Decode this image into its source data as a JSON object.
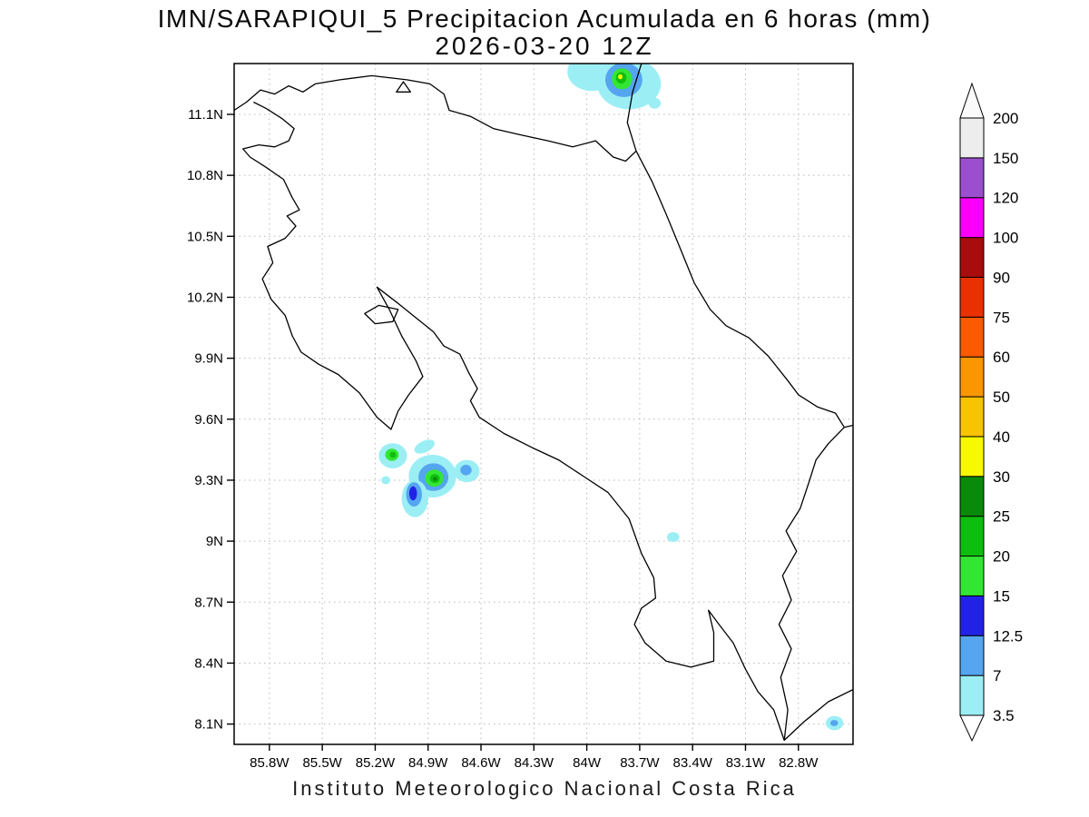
{
  "footer": "Instituto Meteorologico Nacional Costa Rica",
  "chart_data": {
    "type": "heatmap",
    "title": "IMN/SARAPIQUI_5 Precipitacion Acumulada en 6 horas (mm)",
    "subtitle": "2026-03-20 12Z",
    "units": "mm",
    "grid": "dotted",
    "colorbar_position": "right",
    "lon_range": [
      -86.0,
      -82.49
    ],
    "lat_range": [
      8.0,
      11.35
    ],
    "x_ticks": [
      "85.8W",
      "85.5W",
      "85.2W",
      "84.9W",
      "84.6W",
      "84.3W",
      "84W",
      "83.7W",
      "83.4W",
      "83.1W",
      "82.8W"
    ],
    "y_ticks": [
      "11.1N",
      "10.8N",
      "10.5N",
      "10.2N",
      "9.9N",
      "9.6N",
      "9.3N",
      "9N",
      "8.7N",
      "8.4N",
      "8.1N"
    ],
    "grid_color": "#b8b8b8",
    "coast_color": "#000000",
    "colorbar_levels": [
      "3.5",
      "7",
      "12.5",
      "15",
      "20",
      "25",
      "30",
      "40",
      "50",
      "60",
      "75",
      "90",
      "100",
      "120",
      "150",
      "200"
    ],
    "colorbar_colors": [
      "#9ceef5",
      "#55a5f0",
      "#2222e6",
      "#33e633",
      "#0ebe0e",
      "#0a8a0a",
      "#f8f800",
      "#f8c400",
      "#fa9600",
      "#fa5a00",
      "#e83000",
      "#a80c0c",
      "#fa00fa",
      "#9b4fd0",
      "#ededed"
    ],
    "colorbar_under": "#ffffff",
    "colorbar_over": "#fafafa",
    "precip_cells": [
      {
        "lon": -83.97,
        "lat": 11.31,
        "rx": 0.14,
        "ry": 0.095,
        "level": "3.5"
      },
      {
        "lon": -83.76,
        "lat": 11.25,
        "rx": 0.18,
        "ry": 0.125,
        "level": "3.5"
      },
      {
        "lon": -83.79,
        "lat": 11.27,
        "rx": 0.105,
        "ry": 0.085,
        "level": "7"
      },
      {
        "lon": -83.8,
        "lat": 11.275,
        "rx": 0.058,
        "ry": 0.052,
        "level": "15"
      },
      {
        "lon": -83.805,
        "lat": 11.28,
        "rx": 0.03,
        "ry": 0.028,
        "level": "20"
      },
      {
        "lon": -83.81,
        "lat": 11.285,
        "rx": 0.013,
        "ry": 0.012,
        "level": "30"
      },
      {
        "lon": -83.615,
        "lat": 11.155,
        "rx": 0.035,
        "ry": 0.027,
        "level": "3.5"
      },
      {
        "lon": -85.1,
        "lat": 9.42,
        "rx": 0.08,
        "ry": 0.062,
        "level": "3.5"
      },
      {
        "lon": -85.105,
        "lat": 9.425,
        "rx": 0.038,
        "ry": 0.03,
        "level": "15"
      },
      {
        "lon": -85.1,
        "lat": 9.425,
        "rx": 0.018,
        "ry": 0.015,
        "level": "20"
      },
      {
        "lon": -84.92,
        "lat": 9.465,
        "rx": 0.062,
        "ry": 0.028,
        "level": "3.5",
        "rot": -25
      },
      {
        "lon": -84.875,
        "lat": 9.32,
        "rx": 0.135,
        "ry": 0.105,
        "level": "3.5"
      },
      {
        "lon": -84.87,
        "lat": 9.315,
        "rx": 0.085,
        "ry": 0.068,
        "level": "7"
      },
      {
        "lon": -84.865,
        "lat": 9.31,
        "rx": 0.052,
        "ry": 0.042,
        "level": "15"
      },
      {
        "lon": -84.862,
        "lat": 9.308,
        "rx": 0.028,
        "ry": 0.022,
        "level": "20"
      },
      {
        "lon": -84.86,
        "lat": 9.306,
        "rx": 0.012,
        "ry": 0.01,
        "level": "25"
      },
      {
        "lon": -84.68,
        "lat": 9.345,
        "rx": 0.072,
        "ry": 0.055,
        "level": "3.5"
      },
      {
        "lon": -84.685,
        "lat": 9.35,
        "rx": 0.032,
        "ry": 0.026,
        "level": "7"
      },
      {
        "lon": -84.975,
        "lat": 9.21,
        "rx": 0.075,
        "ry": 0.092,
        "level": "3.5"
      },
      {
        "lon": -84.98,
        "lat": 9.23,
        "rx": 0.045,
        "ry": 0.06,
        "level": "7"
      },
      {
        "lon": -84.985,
        "lat": 9.235,
        "rx": 0.022,
        "ry": 0.035,
        "level": "12.5"
      },
      {
        "lon": -85.14,
        "lat": 9.3,
        "rx": 0.025,
        "ry": 0.02,
        "level": "3.5"
      },
      {
        "lon": -83.51,
        "lat": 9.02,
        "rx": 0.035,
        "ry": 0.024,
        "level": "3.5"
      },
      {
        "lon": -82.595,
        "lat": 8.105,
        "rx": 0.05,
        "ry": 0.035,
        "level": "3.5"
      },
      {
        "lon": -82.597,
        "lat": 8.105,
        "rx": 0.022,
        "ry": 0.015,
        "level": "7"
      }
    ],
    "coastlines": [
      {
        "name": "nicaragua-border-lake-shore",
        "closed": false,
        "points": [
          [
            -86.0,
            11.12
          ],
          [
            -85.93,
            11.16
          ],
          [
            -85.85,
            11.22
          ],
          [
            -85.77,
            11.2
          ],
          [
            -85.69,
            11.24
          ],
          [
            -85.61,
            11.21
          ],
          [
            -85.54,
            11.25
          ],
          [
            -85.4,
            11.27
          ],
          [
            -85.22,
            11.29
          ],
          [
            -85.02,
            11.27
          ],
          [
            -84.89,
            11.25
          ],
          [
            -84.81,
            11.2
          ],
          [
            -84.78,
            11.12
          ],
          [
            -84.66,
            11.09
          ],
          [
            -84.53,
            11.03
          ],
          [
            -84.38,
            11.0
          ],
          [
            -84.22,
            10.97
          ],
          [
            -84.08,
            10.94
          ],
          [
            -83.95,
            10.97
          ],
          [
            -83.85,
            10.89
          ],
          [
            -83.78,
            10.87
          ],
          [
            -83.72,
            10.92
          ]
        ]
      },
      {
        "name": "nicaragua-caribbean-coast",
        "closed": false,
        "points": [
          [
            -83.72,
            10.92
          ],
          [
            -83.77,
            11.06
          ],
          [
            -83.74,
            11.21
          ],
          [
            -83.69,
            11.35
          ]
        ]
      },
      {
        "name": "caribbean-coast-panama-border",
        "closed": false,
        "points": [
          [
            -83.72,
            10.92
          ],
          [
            -83.63,
            10.77
          ],
          [
            -83.55,
            10.61
          ],
          [
            -83.47,
            10.44
          ],
          [
            -83.39,
            10.27
          ],
          [
            -83.3,
            10.14
          ],
          [
            -83.21,
            10.06
          ],
          [
            -83.08,
            10.0
          ],
          [
            -82.97,
            9.91
          ],
          [
            -82.86,
            9.79
          ],
          [
            -82.8,
            9.72
          ],
          [
            -82.69,
            9.66
          ],
          [
            -82.59,
            9.63
          ],
          [
            -82.54,
            9.56
          ],
          [
            -82.63,
            9.48
          ],
          [
            -82.7,
            9.4
          ],
          [
            -82.74,
            9.29
          ],
          [
            -82.79,
            9.16
          ],
          [
            -82.87,
            9.05
          ],
          [
            -82.81,
            8.95
          ],
          [
            -82.89,
            8.83
          ],
          [
            -82.84,
            8.71
          ],
          [
            -82.91,
            8.59
          ],
          [
            -82.84,
            8.47
          ],
          [
            -82.9,
            8.33
          ],
          [
            -82.86,
            8.17
          ],
          [
            -82.88,
            8.02
          ],
          [
            -82.77,
            8.11
          ],
          [
            -82.63,
            8.21
          ],
          [
            -82.49,
            8.27
          ]
        ]
      },
      {
        "name": "panama-caribbean-exit",
        "closed": false,
        "points": [
          [
            -82.54,
            9.56
          ],
          [
            -82.49,
            9.57
          ]
        ]
      },
      {
        "name": "pacific-coast",
        "closed": false,
        "points": [
          [
            -82.88,
            8.02
          ],
          [
            -82.94,
            8.17
          ],
          [
            -83.03,
            8.26
          ],
          [
            -83.1,
            8.37
          ],
          [
            -83.17,
            8.5
          ],
          [
            -83.25,
            8.59
          ],
          [
            -83.31,
            8.66
          ],
          [
            -83.28,
            8.55
          ],
          [
            -83.28,
            8.41
          ],
          [
            -83.41,
            8.38
          ],
          [
            -83.55,
            8.41
          ],
          [
            -83.67,
            8.5
          ],
          [
            -83.73,
            8.59
          ],
          [
            -83.69,
            8.67
          ],
          [
            -83.61,
            8.72
          ],
          [
            -83.62,
            8.82
          ],
          [
            -83.69,
            8.94
          ],
          [
            -83.76,
            9.11
          ],
          [
            -83.88,
            9.24
          ],
          [
            -84.02,
            9.32
          ],
          [
            -84.16,
            9.4
          ],
          [
            -84.31,
            9.46
          ],
          [
            -84.47,
            9.53
          ],
          [
            -84.61,
            9.61
          ],
          [
            -84.66,
            9.69
          ],
          [
            -84.62,
            9.75
          ],
          [
            -84.67,
            9.83
          ],
          [
            -84.72,
            9.92
          ],
          [
            -84.81,
            9.96
          ],
          [
            -84.87,
            10.03
          ],
          [
            -84.97,
            10.1
          ],
          [
            -85.07,
            10.17
          ],
          [
            -85.19,
            10.25
          ],
          [
            -85.12,
            10.14
          ],
          [
            -85.05,
            10.01
          ],
          [
            -84.97,
            9.89
          ],
          [
            -84.93,
            9.81
          ],
          [
            -85.01,
            9.72
          ],
          [
            -85.07,
            9.64
          ],
          [
            -85.11,
            9.55
          ],
          [
            -85.19,
            9.61
          ],
          [
            -85.29,
            9.73
          ],
          [
            -85.41,
            9.82
          ],
          [
            -85.52,
            9.87
          ],
          [
            -85.62,
            9.93
          ],
          [
            -85.67,
            10.01
          ],
          [
            -85.71,
            10.11
          ],
          [
            -85.79,
            10.19
          ],
          [
            -85.84,
            10.29
          ],
          [
            -85.78,
            10.37
          ],
          [
            -85.81,
            10.45
          ],
          [
            -85.71,
            10.49
          ],
          [
            -85.65,
            10.55
          ],
          [
            -85.7,
            10.6
          ],
          [
            -85.63,
            10.63
          ],
          [
            -85.67,
            10.69
          ],
          [
            -85.72,
            10.78
          ],
          [
            -85.82,
            10.84
          ],
          [
            -85.91,
            10.89
          ],
          [
            -85.95,
            10.93
          ],
          [
            -85.86,
            10.95
          ],
          [
            -85.77,
            10.94
          ],
          [
            -85.69,
            10.97
          ],
          [
            -85.66,
            11.03
          ],
          [
            -85.73,
            11.08
          ],
          [
            -85.82,
            11.13
          ],
          [
            -85.89,
            11.16
          ]
        ]
      },
      {
        "name": "chira-island",
        "closed": true,
        "points": [
          [
            -85.26,
            10.12
          ],
          [
            -85.18,
            10.16
          ],
          [
            -85.07,
            10.14
          ],
          [
            -85.1,
            10.08
          ],
          [
            -85.2,
            10.07
          ]
        ]
      },
      {
        "name": "lake-island",
        "closed": true,
        "points": [
          [
            -85.04,
            11.26
          ],
          [
            -85.0,
            11.21
          ],
          [
            -85.08,
            11.21
          ]
        ]
      }
    ]
  }
}
